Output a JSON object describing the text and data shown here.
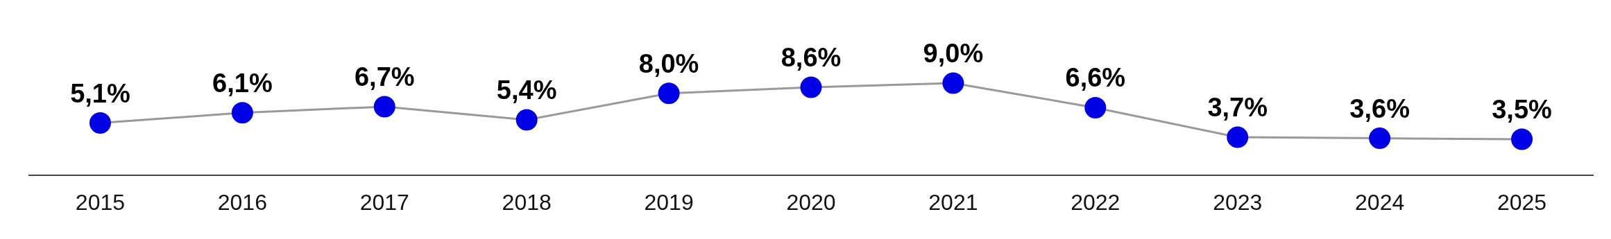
{
  "chart_data": {
    "type": "line",
    "categories": [
      "2015",
      "2016",
      "2017",
      "2018",
      "2019",
      "2020",
      "2021",
      "2022",
      "2023",
      "2024",
      "2025"
    ],
    "series": [
      {
        "color": "#0000e6",
        "values": [
          5.1,
          6.1,
          6.7,
          5.4,
          8.0,
          8.6,
          9.0,
          6.6,
          3.7,
          3.6,
          3.5
        ],
        "value_labels": [
          "5,1%",
          "6,1%",
          "6,7%",
          "5,4%",
          "8,0%",
          "8,6%",
          "9,0%",
          "6,6%",
          "3,7%",
          "3,6%",
          "3,5%"
        ]
      }
    ],
    "relative": false,
    "tick_labels": "x",
    "grid": false,
    "legend": false,
    "marker": "circle",
    "line_style": "solid"
  }
}
